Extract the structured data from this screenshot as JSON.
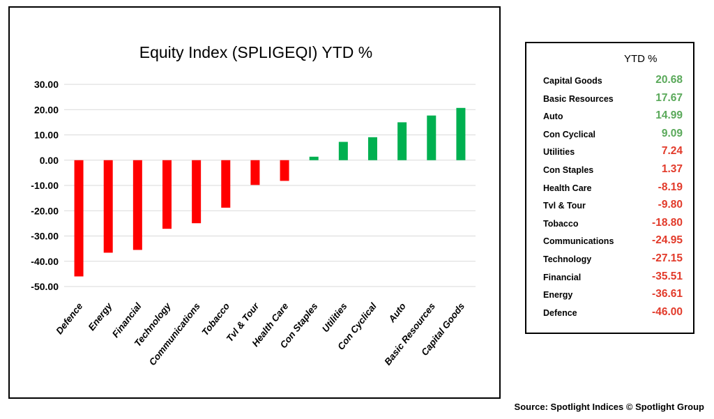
{
  "chart_data": {
    "type": "bar",
    "title": "Equity Index (SPLIGEQI) YTD %",
    "xlabel": "",
    "ylabel": "",
    "categories": [
      "Defence",
      "Energy",
      "Financial",
      "Technology",
      "Communications",
      "Tobacco",
      "Tvl & Tour",
      "Health Care",
      "Con Staples",
      "Utilities",
      "Con Cyclical",
      "Auto",
      "Basic Resources",
      "Capital Goods"
    ],
    "values": [
      -46.0,
      -36.61,
      -35.51,
      -27.15,
      -24.95,
      -18.8,
      -9.8,
      -8.19,
      1.37,
      7.24,
      9.09,
      14.99,
      17.67,
      20.68
    ],
    "ylim": [
      -50,
      30
    ],
    "yticks": [
      "30.00",
      "20.00",
      "10.00",
      "0.00",
      "-10.00",
      "-20.00",
      "-30.00",
      "-40.00",
      "-50.00"
    ],
    "grid": true,
    "colors": {
      "negative": "#ff0000",
      "positive": "#00b050",
      "grid": "#d9d9d9"
    }
  },
  "table": {
    "header": "YTD %",
    "rows": [
      {
        "label": "Capital Goods",
        "value": "20.68",
        "color": "#5aa95a"
      },
      {
        "label": "Basic Resources",
        "value": "17.67",
        "color": "#5aa95a"
      },
      {
        "label": "Auto",
        "value": "14.99",
        "color": "#5aa95a"
      },
      {
        "label": "Con Cyclical",
        "value": "9.09",
        "color": "#5aa95a"
      },
      {
        "label": "Utilities",
        "value": "7.24",
        "color": "#e23a2a"
      },
      {
        "label": "Con Staples",
        "value": "1.37",
        "color": "#e23a2a"
      },
      {
        "label": "Health Care",
        "value": "-8.19",
        "color": "#e23a2a"
      },
      {
        "label": "Tvl & Tour",
        "value": "-9.80",
        "color": "#e23a2a"
      },
      {
        "label": "Tobacco",
        "value": "-18.80",
        "color": "#e23a2a"
      },
      {
        "label": "Communications",
        "value": "-24.95",
        "color": "#e23a2a"
      },
      {
        "label": "Technology",
        "value": "-27.15",
        "color": "#e23a2a"
      },
      {
        "label": "Financial",
        "value": "-35.51",
        "color": "#e23a2a"
      },
      {
        "label": "Energy",
        "value": "-36.61",
        "color": "#e23a2a"
      },
      {
        "label": "Defence",
        "value": "-46.00",
        "color": "#e23a2a"
      }
    ]
  },
  "source": "Source: Spotlight Indices © Spotlight Group"
}
